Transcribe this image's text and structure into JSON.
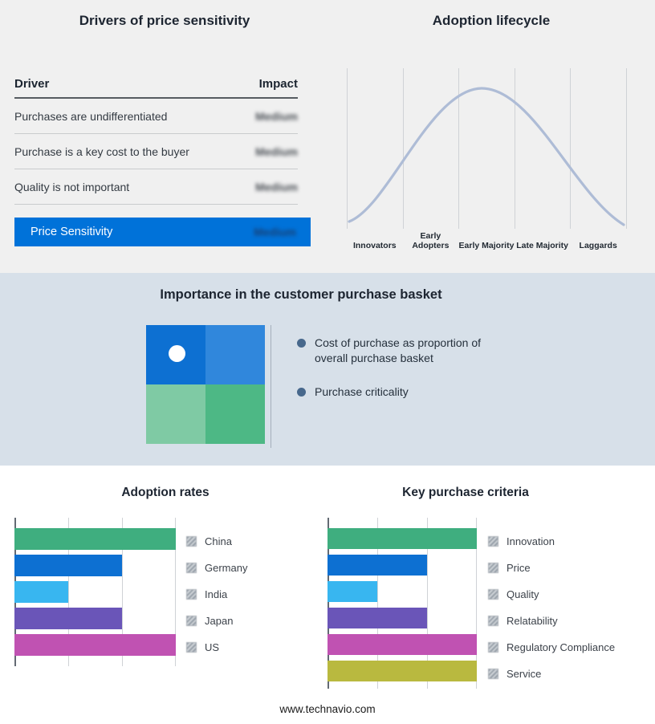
{
  "footer": {
    "text": "www.technavio.com"
  },
  "middle": {
    "title": "Importance in the customer purchase basket",
    "bullets": [
      "Cost of purchase as proportion of overall purchase basket",
      "Purchase criticality"
    ],
    "band_color": "#d7e0e9",
    "bullet_dot_color": "#47688c",
    "quadrant_colors": {
      "top_left": "#0d70d2",
      "top_right": "#3087dc",
      "bottom_left": "#7fcaa4",
      "bottom_right": "#4db885"
    }
  },
  "chart_data": [
    {
      "type": "table",
      "title": "Drivers of price sensitivity",
      "columns": [
        "Driver",
        "Impact"
      ],
      "rows": [
        [
          "Purchases are undifferentiated",
          "Medium"
        ],
        [
          "Purchase is a key cost to the buyer",
          "Medium"
        ],
        [
          "Quality is not important",
          "Medium"
        ]
      ],
      "highlight_row": [
        "Price Sensitivity",
        "Medium"
      ],
      "highlight_color": "#0072d9",
      "impact_values_blurred": true
    },
    {
      "type": "line",
      "title": "Adoption lifecycle",
      "categories": [
        "Innovators",
        "Early Adopters",
        "Early Majority",
        "Late Majority",
        "Laggards"
      ],
      "values": [
        4,
        45,
        100,
        45,
        4
      ],
      "shape": "bell curve peaking at Early Majority",
      "line_color": "#aebcd6",
      "xlabel": "",
      "ylabel": "",
      "grid": "vertical stage separators"
    },
    {
      "type": "bar",
      "title": "Adoption rates",
      "orientation": "horizontal",
      "categories": [
        "China",
        "Germany",
        "India",
        "Japan",
        "US"
      ],
      "values": [
        3,
        2,
        1,
        2,
        3
      ],
      "xmax": 3,
      "unit": "gridline units (no numeric axis labels shown)",
      "colors": [
        "#3fae7f",
        "#0d70d2",
        "#38b6f0",
        "#6a55b8",
        "#c052b2"
      ],
      "legend_position": "right"
    },
    {
      "type": "bar",
      "title": "Key purchase criteria",
      "orientation": "horizontal",
      "categories": [
        "Innovation",
        "Price",
        "Quality",
        "Relatability",
        "Regulatory Compliance",
        "Service"
      ],
      "values": [
        3,
        2,
        1,
        2,
        3,
        3
      ],
      "xmax": 3,
      "unit": "gridline units (no numeric axis labels shown)",
      "colors": [
        "#3fae7f",
        "#0d70d2",
        "#38b6f0",
        "#6a55b8",
        "#c052b2",
        "#b9b93f"
      ],
      "legend_position": "right"
    }
  ]
}
